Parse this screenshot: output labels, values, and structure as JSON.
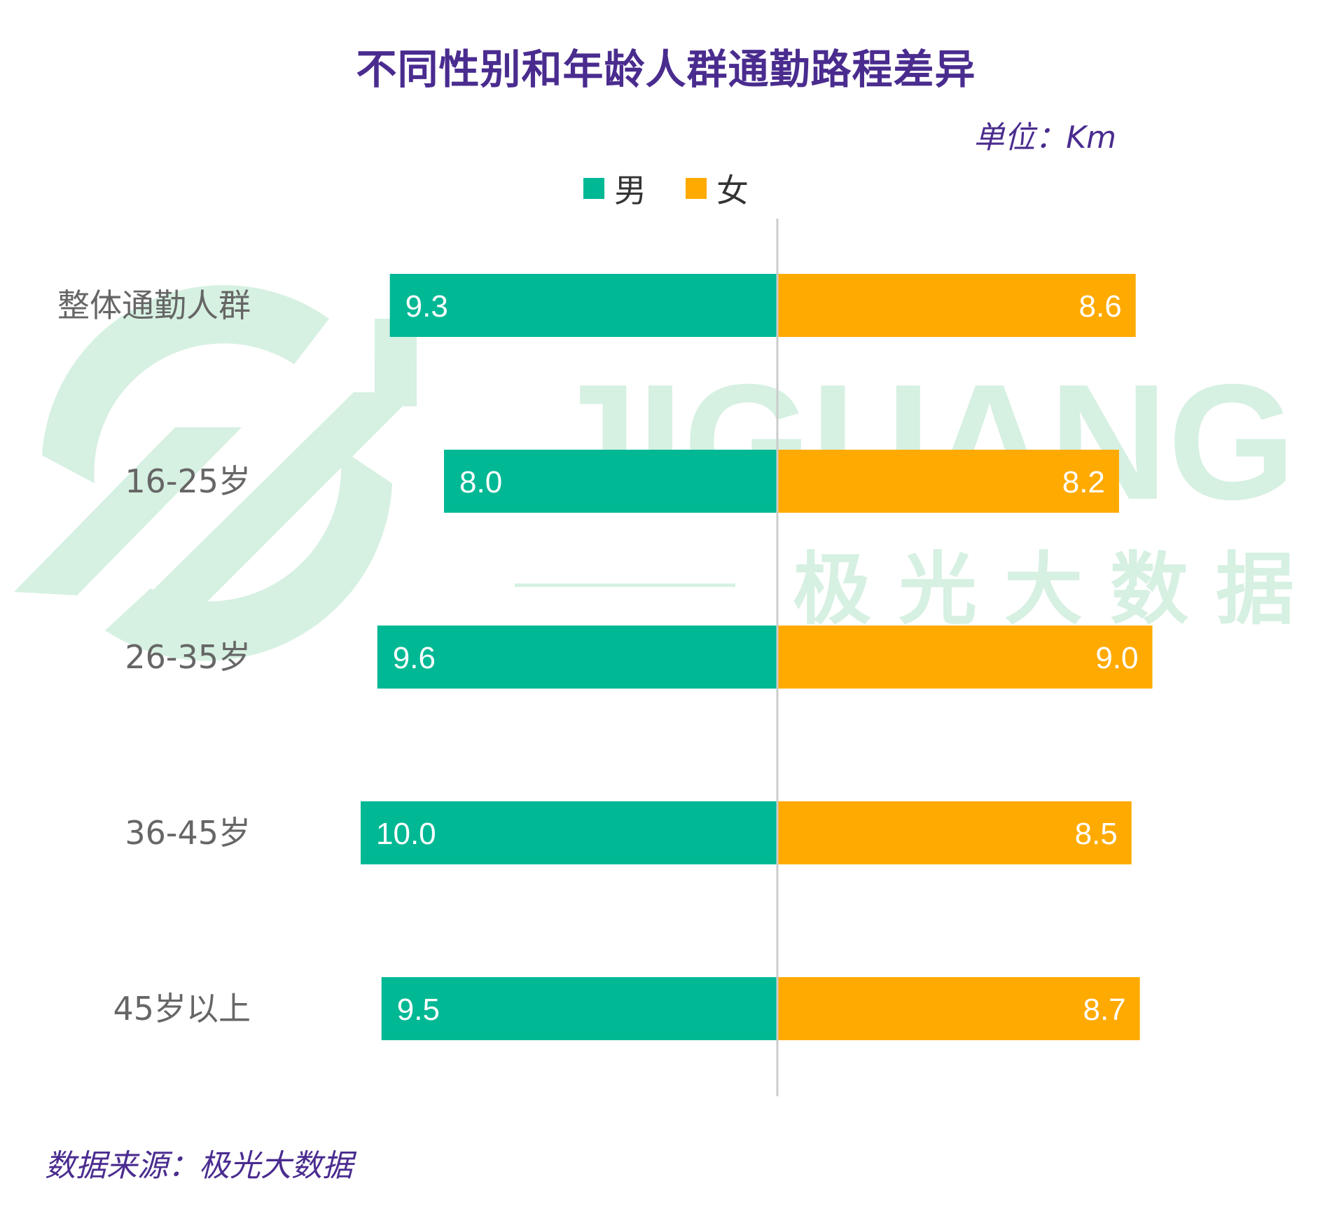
{
  "chart_data": {
    "type": "bar",
    "orientation": "horizontal-butterfly",
    "title": "不同性别和年龄人群通勤路程差异",
    "unit": "单位：Km",
    "source": "数据来源：极光大数据",
    "categories": [
      "整体通勤人群",
      "16-25岁",
      "26-35岁",
      "36-45岁",
      "45岁以上"
    ],
    "series": [
      {
        "name": "男",
        "values": [
          9.3,
          8.0,
          9.6,
          10.0,
          9.5
        ],
        "color": "#00b894"
      },
      {
        "name": "女",
        "values": [
          8.6,
          8.2,
          9.0,
          8.5,
          8.7
        ],
        "color": "#ffaa00"
      }
    ],
    "value_labels": {
      "男": [
        "9.3",
        "8.0",
        "9.6",
        "10.0",
        "9.5"
      ],
      "女": [
        "8.6",
        "8.2",
        "9.0",
        "8.5",
        "8.7"
      ]
    },
    "xlim": [
      0,
      10
    ],
    "legend_position": "top-center"
  },
  "watermark": {
    "brand_text": "JIGUANG",
    "brand_cn": "极 光 大 数 据",
    "color": "#cfeedd"
  },
  "colors": {
    "title": "#4a2c8f",
    "axis": "#cccccc",
    "category_text": "#666666",
    "value_text": "#ffffff"
  }
}
